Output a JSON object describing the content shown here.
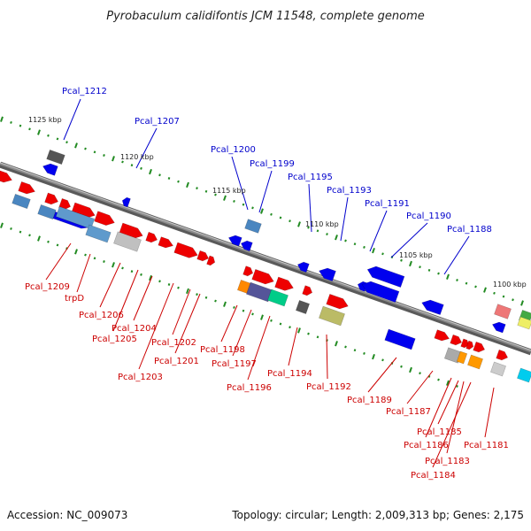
{
  "title": "Pyrobaculum calidifontis JCM 11548, complete genome",
  "footer": {
    "accession": "Accession: NC_009073",
    "summary": "Topology: circular; Length: 2,009,313 bp; Genes: 2,175"
  },
  "colors": {
    "upper_label": "#0000cc",
    "lower_label": "#cc0000",
    "backbone": "#8a8a8a",
    "ticks": "#228b22"
  },
  "scale_labels": [
    "1125 kbp",
    "1120 kbp",
    "1115 kbp",
    "1110 kbp",
    "1105 kbp",
    "1100 kbp"
  ],
  "upper_labels": [
    "Pcal_1212",
    "Pcal_1207",
    "Pcal_1200",
    "Pcal_1199",
    "Pcal_1195",
    "Pcal_1193",
    "Pcal_1191",
    "Pcal_1190",
    "Pcal_1188"
  ],
  "lower_labels": [
    "Pcal_1209",
    "trpD",
    "Pcal_1206",
    "Pcal_1205",
    "Pcal_1204",
    "Pcal_1203",
    "Pcal_1202",
    "Pcal_1201",
    "Pcal_1198",
    "Pcal_1197",
    "Pcal_1196",
    "Pcal_1194",
    "Pcal_1192",
    "Pcal_1189",
    "Pcal_1187",
    "Pcal_1186",
    "Pcal_1185",
    "Pcal_1184",
    "Pcal_1183",
    "Pcal_1181"
  ]
}
